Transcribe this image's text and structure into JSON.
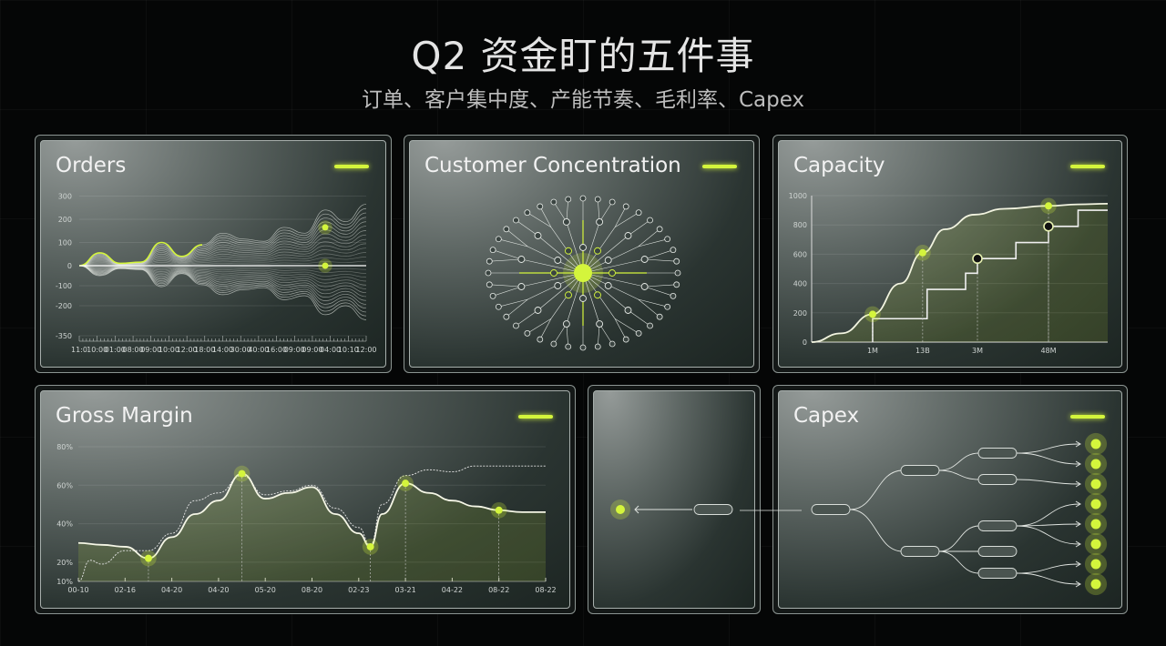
{
  "header": {
    "title": "Q2 资金盯的五件事",
    "subtitle": "订单、客户集中度、产能节奏、毛利率、Capex"
  },
  "colors": {
    "accent": "#d4f53c",
    "line": "#f2f4e6",
    "background": "#050606"
  },
  "panels": {
    "orders": "Orders",
    "customer": "Customer Concentration",
    "capacity": "Capacity",
    "gross_margin": "Gross Margin",
    "capex": "Capex"
  },
  "chart_data": [
    {
      "type": "area",
      "title": "Orders",
      "ylim": [
        -350,
        300
      ],
      "yticks": [
        "300",
        "200",
        "100",
        "0",
        "-100",
        "-200",
        "-350"
      ],
      "yticks_values": [
        300,
        200,
        100,
        0,
        -100,
        -200,
        -350
      ],
      "xticks": [
        "11:0",
        "10:00",
        "01:00",
        "08:00",
        "09:00",
        "10:00",
        "12:00",
        "18:00",
        "14:00",
        "30:00",
        "40:00",
        "16:00",
        "09:00",
        "09:00",
        "04:00",
        "10:10",
        "12:00"
      ],
      "upper": [
        0,
        55,
        10,
        15,
        100,
        40,
        90,
        140,
        115,
        105,
        165,
        140,
        240,
        190,
        265
      ],
      "lower": [
        0,
        -50,
        -15,
        -20,
        -105,
        -40,
        -95,
        -145,
        -120,
        -110,
        -170,
        -150,
        -245,
        -200,
        -270
      ],
      "highlights": [
        {
          "x": 12,
          "y": 165
        },
        {
          "x": 12,
          "y": 0
        }
      ]
    },
    {
      "type": "network",
      "title": "Customer Concentration"
    },
    {
      "type": "line",
      "title": "Capacity",
      "ylim": [
        0,
        1000
      ],
      "xlim": [
        0,
        10
      ],
      "yticks": [
        "0",
        "200",
        "400",
        "600",
        "800",
        "1000"
      ],
      "yticks_values": [
        0,
        200,
        400,
        600,
        800,
        1000
      ],
      "xticks": [
        {
          "label": "1M",
          "x": 2.06
        },
        {
          "label": "13B",
          "x": 3.75
        },
        {
          "label": "3M",
          "x": 5.6
        },
        {
          "label": "48M",
          "x": 8
        }
      ],
      "curve": [
        [
          0,
          0
        ],
        [
          1,
          60
        ],
        [
          2.06,
          190
        ],
        [
          3,
          400
        ],
        [
          3.75,
          610
        ],
        [
          4.5,
          770
        ],
        [
          5.5,
          870
        ],
        [
          6.5,
          910
        ],
        [
          8,
          930
        ],
        [
          9,
          940
        ],
        [
          10,
          945
        ]
      ],
      "steps": [
        [
          2.06,
          0
        ],
        [
          2.06,
          160
        ],
        [
          3.9,
          160
        ],
        [
          3.9,
          360
        ],
        [
          5.2,
          360
        ],
        [
          5.2,
          470
        ],
        [
          5.6,
          470
        ],
        [
          5.6,
          570
        ],
        [
          6.9,
          570
        ],
        [
          6.9,
          680
        ],
        [
          8,
          680
        ],
        [
          8,
          790
        ],
        [
          9,
          790
        ],
        [
          9,
          900
        ],
        [
          10,
          900
        ]
      ],
      "glow_points": [
        [
          2.06,
          190
        ],
        [
          3.75,
          610
        ],
        [
          8,
          930
        ]
      ],
      "ring_points": [
        [
          5.6,
          570
        ],
        [
          8,
          790
        ]
      ]
    },
    {
      "type": "line",
      "title": "Gross Margin",
      "ylim": [
        10,
        80
      ],
      "xlim": [
        0,
        10
      ],
      "yticks": [
        "80%",
        "60%",
        "40%",
        "20%",
        "10%"
      ],
      "yticks_values": [
        80,
        60,
        40,
        20,
        10
      ],
      "xticks": [
        "00-10",
        "02-16",
        "04-20",
        "04-20",
        "05-20",
        "08-20",
        "02-23",
        "03-21",
        "04-22",
        "08-22",
        "08-22"
      ],
      "series": [
        {
          "style": "solid",
          "points": [
            [
              0,
              30
            ],
            [
              0.5,
              29
            ],
            [
              1,
              28
            ],
            [
              1.5,
              22
            ],
            [
              2,
              33
            ],
            [
              2.5,
              45
            ],
            [
              3,
              52
            ],
            [
              3.5,
              66
            ],
            [
              4,
              53
            ],
            [
              4.5,
              56
            ],
            [
              5,
              59
            ],
            [
              5.5,
              45
            ],
            [
              6,
              35
            ],
            [
              6.25,
              28
            ],
            [
              6.5,
              45
            ],
            [
              7,
              61
            ],
            [
              7.5,
              56
            ],
            [
              8,
              52
            ],
            [
              8.5,
              49
            ],
            [
              9,
              47
            ],
            [
              9.5,
              46
            ],
            [
              10,
              46
            ]
          ]
        },
        {
          "style": "dashed",
          "points": [
            [
              0,
              10
            ],
            [
              0.25,
              21
            ],
            [
              0.5,
              19
            ],
            [
              1,
              26
            ],
            [
              1.5,
              26
            ],
            [
              2,
              35
            ],
            [
              2.5,
              52
            ],
            [
              3,
              56
            ],
            [
              3.5,
              65
            ],
            [
              4,
              55
            ],
            [
              4.5,
              57
            ],
            [
              5,
              60
            ],
            [
              5.5,
              48
            ],
            [
              6,
              38
            ],
            [
              6.25,
              29
            ],
            [
              6.5,
              50
            ],
            [
              7,
              65
            ],
            [
              7.5,
              68
            ],
            [
              8,
              67
            ],
            [
              8.5,
              70
            ],
            [
              9,
              70
            ],
            [
              10,
              70
            ]
          ]
        }
      ],
      "highlights": [
        [
          1.5,
          22
        ],
        [
          3.5,
          66
        ],
        [
          6.25,
          28
        ],
        [
          7,
          61
        ],
        [
          9,
          47
        ]
      ]
    },
    {
      "type": "tree",
      "title": "Capex",
      "leaf_count": 9
    }
  ]
}
